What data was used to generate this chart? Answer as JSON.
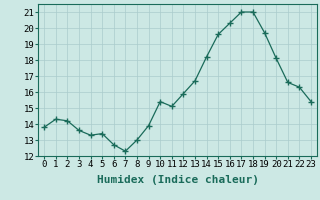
{
  "x": [
    0,
    1,
    2,
    3,
    4,
    5,
    6,
    7,
    8,
    9,
    10,
    11,
    12,
    13,
    14,
    15,
    16,
    17,
    18,
    19,
    20,
    21,
    22,
    23
  ],
  "y": [
    13.8,
    14.3,
    14.2,
    13.6,
    13.3,
    13.4,
    12.7,
    12.3,
    13.0,
    13.9,
    15.4,
    15.1,
    15.9,
    16.7,
    18.2,
    19.6,
    20.3,
    21.0,
    21.0,
    19.7,
    18.1,
    16.6,
    16.3,
    15.4
  ],
  "line_color": "#1a6b5a",
  "marker": "+",
  "marker_size": 4,
  "bg_color": "#cce8e4",
  "grid_color": "#aacccc",
  "xlabel": "Humidex (Indice chaleur)",
  "xlabel_fontsize": 8,
  "tick_fontsize": 6.5,
  "ylim": [
    12,
    21.5
  ],
  "xlim": [
    -0.5,
    23.5
  ],
  "yticks": [
    12,
    13,
    14,
    15,
    16,
    17,
    18,
    19,
    20,
    21
  ],
  "xticks": [
    0,
    1,
    2,
    3,
    4,
    5,
    6,
    7,
    8,
    9,
    10,
    11,
    12,
    13,
    14,
    15,
    16,
    17,
    18,
    19,
    20,
    21,
    22,
    23
  ]
}
